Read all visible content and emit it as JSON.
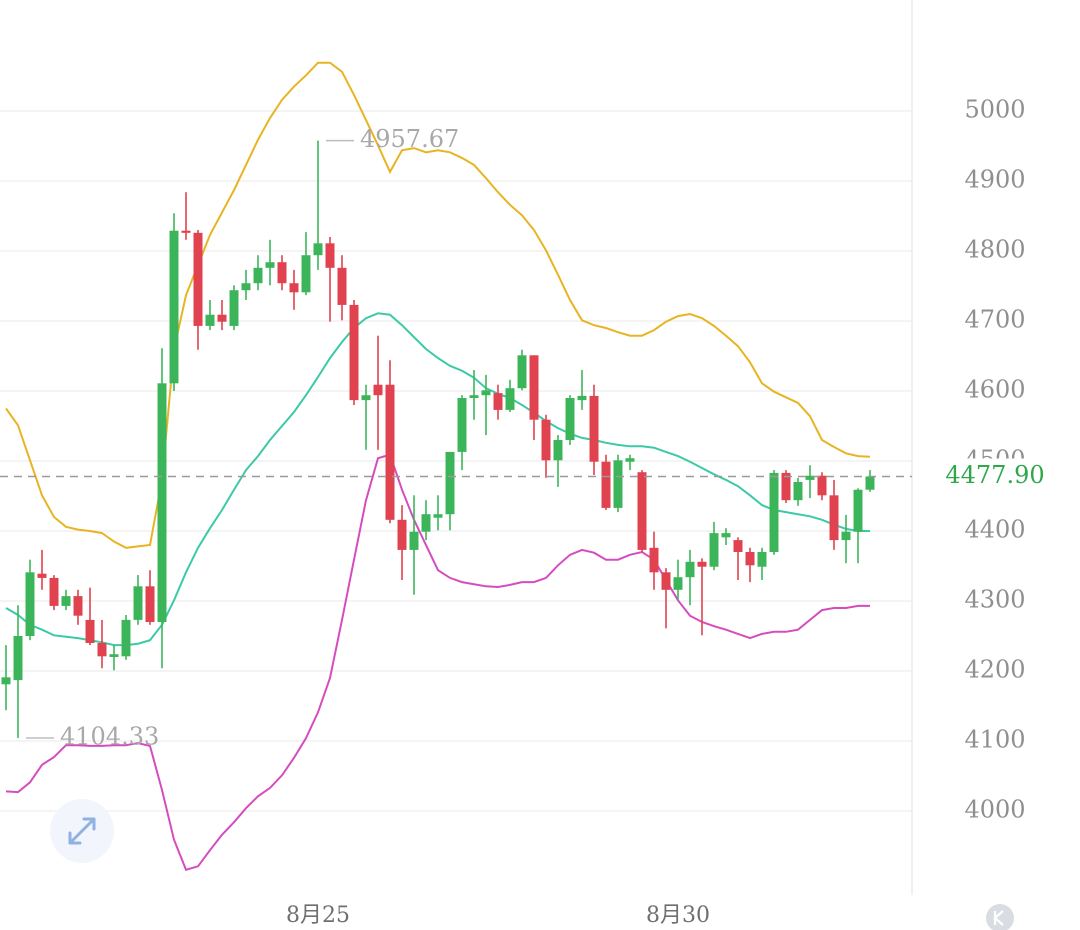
{
  "chart_data": {
    "type": "candlestick",
    "categories": [
      null,
      null,
      null,
      null,
      null,
      null,
      null,
      null,
      null,
      null,
      null,
      null,
      null,
      null,
      null,
      null,
      null,
      null,
      null,
      null,
      null,
      null,
      null,
      null,
      null,
      null,
      "8月25",
      null,
      null,
      null,
      null,
      null,
      null,
      null,
      null,
      null,
      null,
      null,
      null,
      null,
      null,
      null,
      null,
      null,
      null,
      null,
      null,
      null,
      null,
      null,
      null,
      null,
      null,
      null,
      null,
      null,
      "8月30",
      null,
      null,
      null,
      null,
      null,
      null,
      null,
      null,
      null,
      null,
      null,
      null,
      null,
      null,
      null,
      null
    ],
    "open": [
      4181,
      4187,
      4250,
      4339,
      4333,
      4293,
      4307,
      4273,
      4240,
      4220,
      4221,
      4273,
      4321,
      4270,
      4611,
      4829,
      4826,
      4693,
      4709,
      4693,
      4744,
      4754,
      4776,
      4784,
      4754,
      4741,
      4794,
      4811,
      4776,
      4723,
      4587,
      4609,
      4609,
      4416,
      4373,
      4399,
      4419,
      4424,
      4513,
      4590,
      4594,
      4597,
      4573,
      4604,
      4651,
      4559,
      4501,
      4530,
      4587,
      4593,
      4499,
      4433,
      4499,
      4484,
      4376,
      4341,
      4316,
      4334,
      4356,
      4349,
      4391,
      4387,
      4370,
      4349,
      4370,
      4483,
      4444,
      4473,
      4479,
      4451,
      4387,
      4399,
      4459
    ],
    "high": [
      4237,
      4294,
      4359,
      4373,
      4337,
      4316,
      4316,
      4319,
      4273,
      4237,
      4280,
      4337,
      4344,
      4661,
      4854,
      4884,
      4830,
      4730,
      4730,
      4751,
      4773,
      4794,
      4816,
      4794,
      4773,
      4827,
      4957.67,
      4820,
      4794,
      4730,
      4609,
      4679,
      4644,
      4437,
      4451,
      4444,
      4451,
      4513,
      4594,
      4630,
      4623,
      4609,
      4616,
      4659,
      4651,
      4566,
      4537,
      4594,
      4630,
      4609,
      4509,
      4509,
      4509,
      4487,
      4399,
      4347,
      4359,
      4373,
      4361,
      4413,
      4404,
      4391,
      4376,
      4376,
      4487,
      4487,
      4476,
      4494,
      4484,
      4473,
      4423,
      4461,
      4487
    ],
    "low": [
      4144,
      4104.33,
      4244,
      4316,
      4287,
      4287,
      4266,
      4237,
      4204,
      4201,
      4216,
      4266,
      4266,
      4204,
      4600,
      4816,
      4659,
      4687,
      4687,
      4687,
      4730,
      4744,
      4751,
      4744,
      4716,
      4737,
      4773,
      4699,
      4701,
      4580,
      4516,
      4516,
      4411,
      4330,
      4309,
      4387,
      4401,
      4401,
      4487,
      4559,
      4537,
      4559,
      4570,
      4601,
      4530,
      4476,
      4463,
      4523,
      4573,
      4480,
      4430,
      4427,
      4487,
      4370,
      4316,
      4261,
      4301,
      4294,
      4251,
      4344,
      4380,
      4330,
      4327,
      4330,
      4366,
      4440,
      4436,
      4447,
      4444,
      4373,
      4354,
      4354,
      4456
    ],
    "close": [
      4191,
      4250,
      4341,
      4333,
      4293,
      4307,
      4279,
      4240,
      4221,
      4224,
      4273,
      4321,
      4270,
      4611,
      4829,
      4826,
      4693,
      4709,
      4699,
      4744,
      4754,
      4776,
      4784,
      4754,
      4741,
      4794,
      4811,
      4776,
      4723,
      4587,
      4594,
      4594,
      4416,
      4373,
      4399,
      4424,
      4424,
      4513,
      4590,
      4594,
      4601,
      4573,
      4604,
      4651,
      4559,
      4501,
      4530,
      4590,
      4593,
      4499,
      4433,
      4501,
      4504,
      4373,
      4341,
      4316,
      4334,
      4356,
      4349,
      4397,
      4397,
      4370,
      4351,
      4370,
      4483,
      4444,
      4470,
      4479,
      4451,
      4387,
      4399,
      4459,
      4477.9
    ],
    "up_color": "#3cb55a",
    "down_color": "#e0434f",
    "overlays": [
      {
        "color": "#e8b423",
        "values": [
          4575,
          4551,
          4501,
          4451,
          4420,
          4406,
          4402,
          4400,
          4397,
          4385,
          4376,
          4378,
          4380,
          4473,
          4659,
          4737,
          4780,
          4823,
          4855,
          4887,
          4923,
          4959,
          4990,
          5016,
          5035,
          5051,
          5069,
          5069,
          5056,
          5023,
          4987,
          4951,
          4913,
          4944,
          4947,
          4941,
          4944,
          4941,
          4933,
          4923,
          4904,
          4884,
          4866,
          4851,
          4830,
          4801,
          4766,
          4730,
          4701,
          4694,
          4690,
          4684,
          4679,
          4679,
          4687,
          4699,
          4707,
          4710,
          4704,
          4693,
          4679,
          4664,
          4641,
          4611,
          4599,
          4591,
          4583,
          4564,
          4530,
          4520,
          4511,
          4507,
          4506
        ]
      },
      {
        "color": "#3cc9a8",
        "values": [
          4290,
          4280,
          4266,
          4259,
          4251,
          4249,
          4247,
          4244,
          4241,
          4237,
          4237,
          4239,
          4244,
          4266,
          4301,
          4341,
          4376,
          4404,
          4430,
          4459,
          4487,
          4507,
          4530,
          4550,
          4570,
          4594,
          4620,
          4647,
          4670,
          4690,
          4704,
          4711,
          4709,
          4694,
          4677,
          4660,
          4647,
          4636,
          4629,
          4619,
          4604,
          4596,
          4590,
          4580,
          4569,
          4557,
          4547,
          4539,
          4533,
          4530,
          4526,
          4523,
          4521,
          4521,
          4519,
          4513,
          4507,
          4499,
          4490,
          4481,
          4473,
          4464,
          4451,
          4437,
          4430,
          4427,
          4424,
          4421,
          4416,
          4409,
          4403,
          4400,
          4400
        ]
      },
      {
        "color": "#d54cbf",
        "values": [
          4028,
          4027,
          4041,
          4066,
          4077,
          4094,
          4094,
          4093,
          4093,
          4094,
          4094,
          4097,
          4093,
          4030,
          3959,
          3916,
          3921,
          3944,
          3966,
          3984,
          4004,
          4021,
          4033,
          4051,
          4076,
          4104,
          4141,
          4190,
          4273,
          4359,
          4444,
          4504,
          4509,
          4459,
          4416,
          4380,
          4344,
          4333,
          4327,
          4324,
          4321,
          4320,
          4323,
          4327,
          4327,
          4333,
          4351,
          4366,
          4373,
          4369,
          4359,
          4359,
          4366,
          4370,
          4359,
          4330,
          4301,
          4279,
          4270,
          4264,
          4259,
          4253,
          4247,
          4253,
          4256,
          4256,
          4259,
          4273,
          4287,
          4290,
          4290,
          4293,
          4293
        ]
      }
    ],
    "ylim": [
      3880,
      5158.6
    ],
    "yticks": [
      4000,
      4100,
      4200,
      4300,
      4400,
      4500,
      4600,
      4700,
      4800,
      4900,
      5000
    ],
    "grid": true,
    "last_price": {
      "value": 4477.9,
      "label": "4477.90",
      "color": "#2ea84a"
    }
  }
}
